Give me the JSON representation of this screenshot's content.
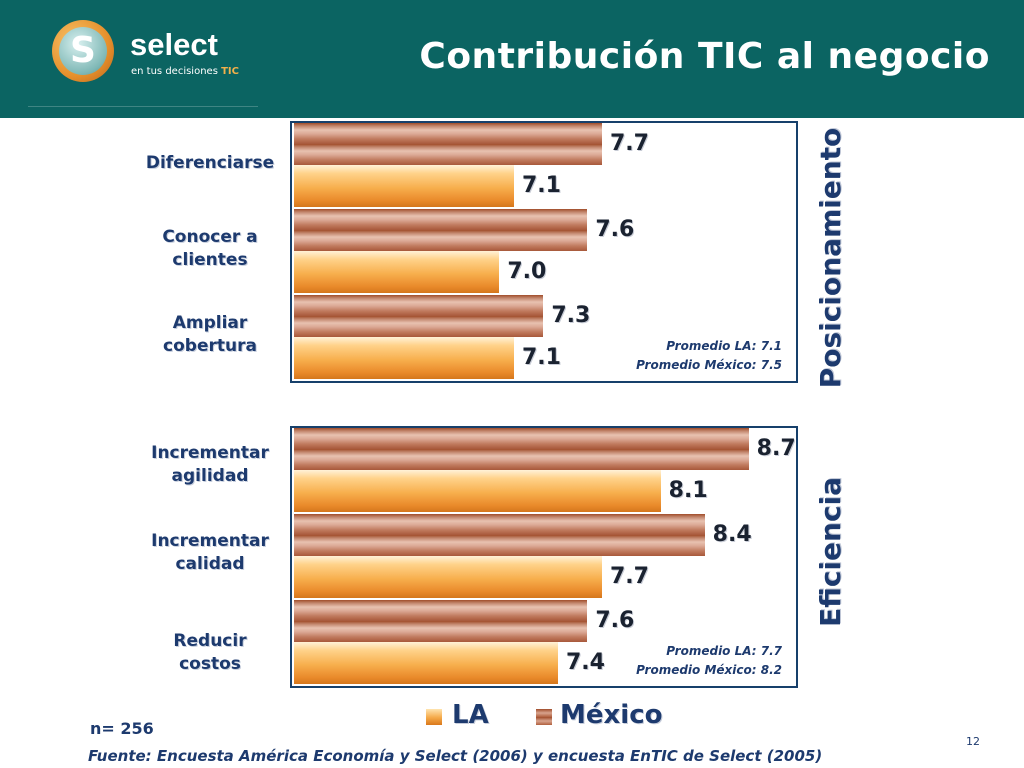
{
  "header": {
    "title": "Contribución TIC al negocio",
    "logo": {
      "name": "select",
      "tagline": "en tus decisiones",
      "tagline_accent": "TIC",
      "icon": "select-s-logo-icon"
    }
  },
  "colors": {
    "header_bg": "#0b6462",
    "mexico_bar": "#b0603e",
    "la_bar": "#f5a847",
    "text": "#1d3a6e"
  },
  "chart_data": [
    {
      "type": "bar",
      "orientation": "horizontal",
      "title": "Posicionamiento",
      "categories": [
        "Diferenciarse",
        "Conocer a clientes",
        "Ampliar cobertura"
      ],
      "series": [
        {
          "name": "México",
          "values": [
            7.7,
            7.6,
            7.3
          ]
        },
        {
          "name": "LA",
          "values": [
            7.1,
            7.0,
            7.1
          ]
        }
      ],
      "value_labels": {
        "México": [
          "7.7",
          "7.6",
          "7.3"
        ],
        "LA": [
          "7.1",
          "7.0",
          "7.1"
        ]
      },
      "averages": [
        "Promedio LA: 7.1",
        "Promedio México: 7.5"
      ],
      "xlim": [
        5.6,
        8.9
      ]
    },
    {
      "type": "bar",
      "orientation": "horizontal",
      "title": "Eficiencia",
      "categories": [
        "Incrementar agilidad",
        "Incrementar calidad",
        "Reducir costos"
      ],
      "series": [
        {
          "name": "México",
          "values": [
            8.7,
            8.4,
            7.6
          ]
        },
        {
          "name": "LA",
          "values": [
            8.1,
            7.7,
            7.4
          ]
        }
      ],
      "value_labels": {
        "México": [
          "8.7",
          "8.4",
          "7.6"
        ],
        "LA": [
          "8.1",
          "7.7",
          "7.4"
        ]
      },
      "averages": [
        "Promedio LA: 7.7",
        "Promedio México: 8.2"
      ],
      "xlim": [
        5.6,
        8.9
      ]
    }
  ],
  "legend": [
    {
      "label": "LA"
    },
    {
      "label": "México"
    }
  ],
  "footer": {
    "n_label": "n= 256",
    "source": "Fuente: Encuesta América Economía y Select (2006) y encuesta  EnTIC de Select  (2005)",
    "page_number": "12"
  }
}
